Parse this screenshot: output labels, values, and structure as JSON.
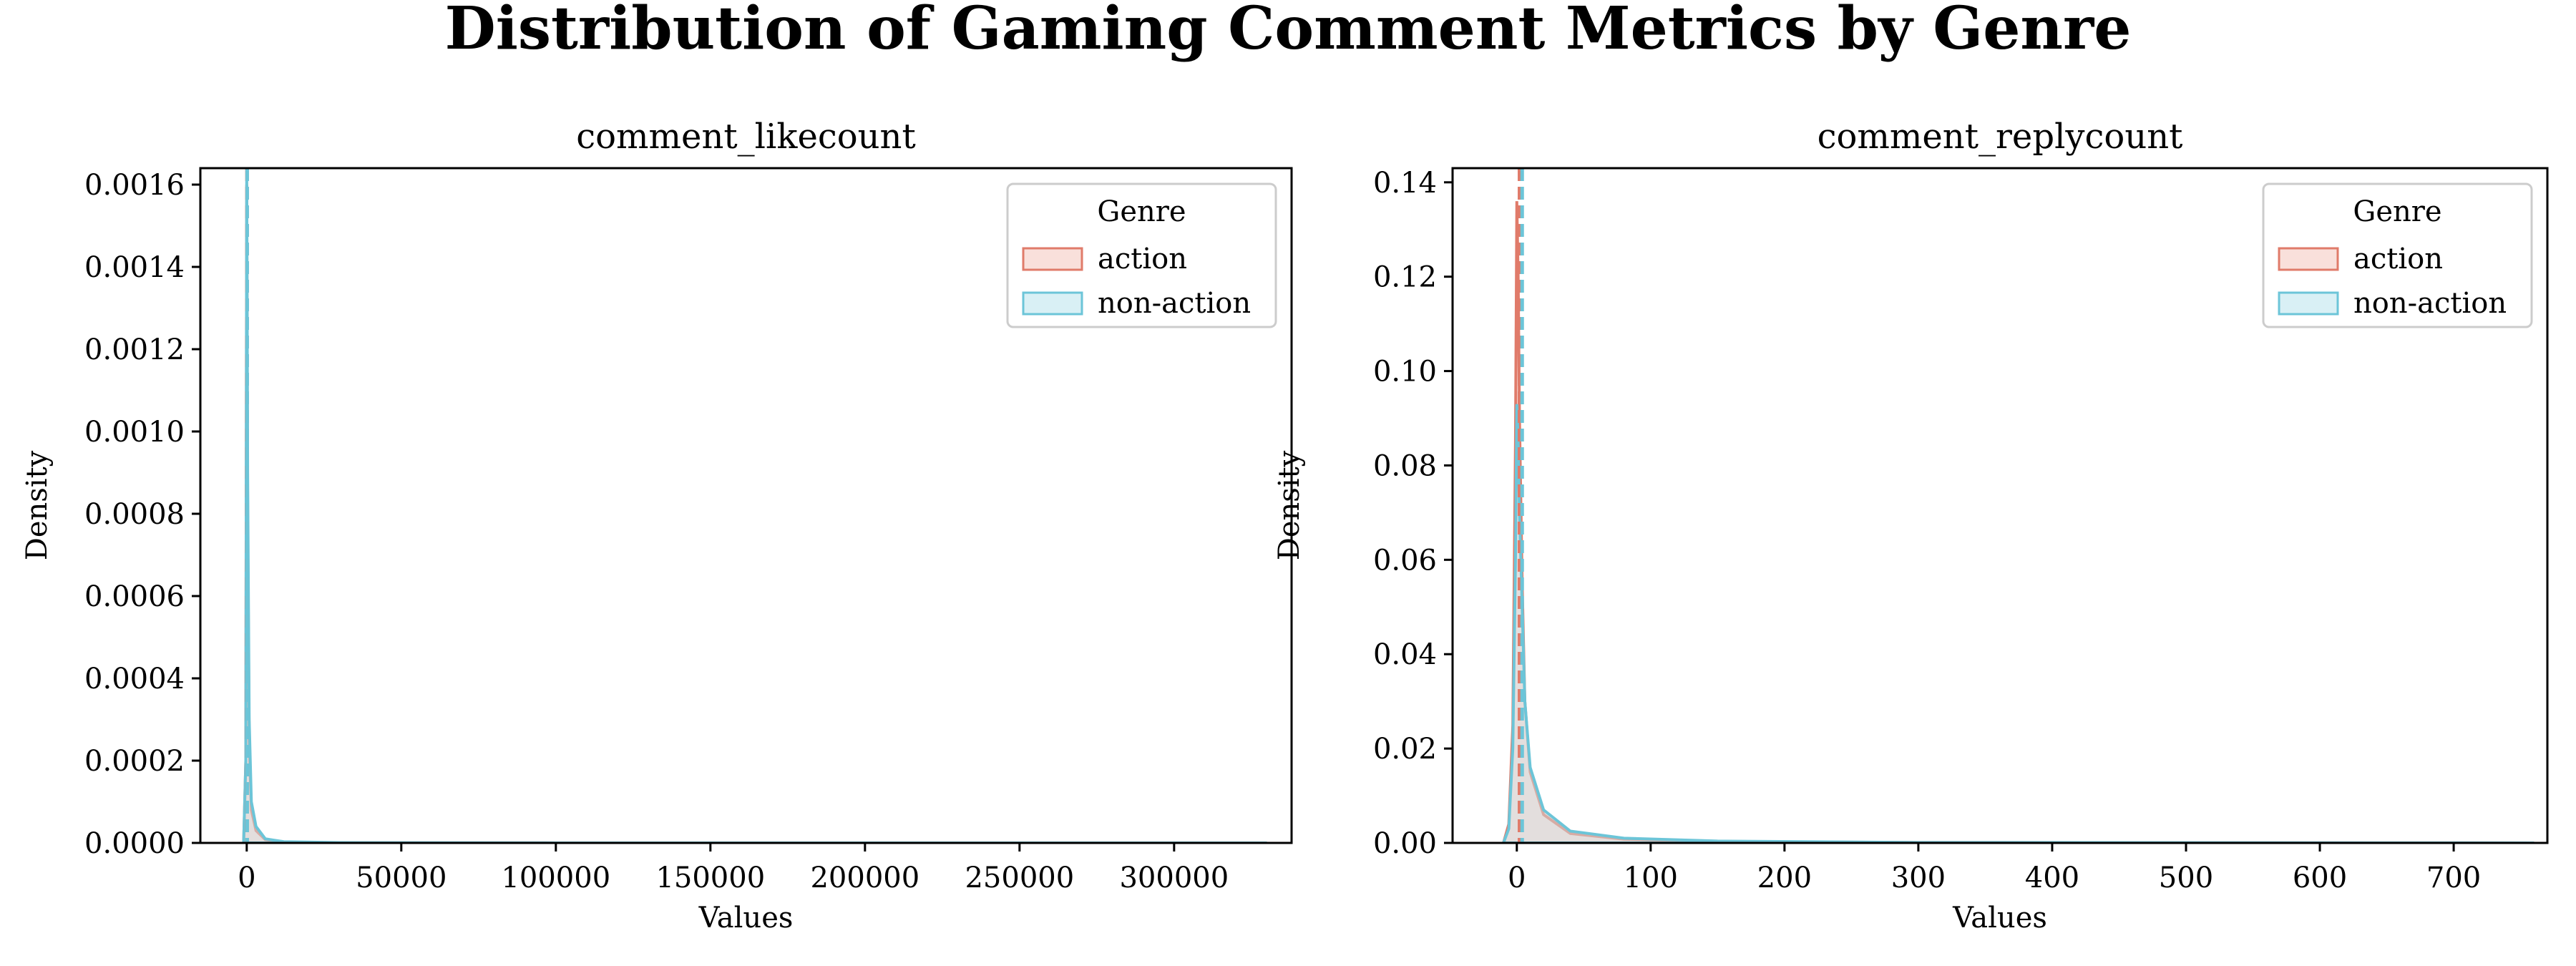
{
  "figure_title": "Distribution of Gaming Comment Metrics by Genre",
  "colors": {
    "action": "#e07b6a",
    "action_fill": "#f9e0db",
    "non_action": "#6cc5d8",
    "non_action_fill": "#d9f0f5",
    "overlap_fill": "#cfd3d3",
    "axis": "#000000"
  },
  "chart_data": [
    {
      "type": "area",
      "title": "comment_likecount",
      "xlabel": "Values",
      "ylabel": "Density",
      "xlim": [
        -15000,
        338000
      ],
      "ylim": [
        0,
        0.00164
      ],
      "xticks": [
        0,
        50000,
        100000,
        150000,
        200000,
        250000,
        300000
      ],
      "xtick_labels": [
        "0",
        "50000",
        "100000",
        "150000",
        "200000",
        "250000",
        "300000"
      ],
      "yticks": [
        0,
        0.0002,
        0.0004,
        0.0006,
        0.0008,
        0.001,
        0.0012,
        0.0014,
        0.0016
      ],
      "ytick_labels": [
        "0.0000",
        "0.0002",
        "0.0004",
        "0.0006",
        "0.0008",
        "0.0010",
        "0.0012",
        "0.0014",
        "0.0016"
      ],
      "legend": {
        "title": "Genre",
        "position": "top-right",
        "entries": [
          "action",
          "non-action"
        ]
      },
      "series": [
        {
          "name": "action",
          "x": [
            -1000,
            -300,
            0,
            300,
            800,
            1500,
            3000,
            6000,
            12000,
            30000,
            100000,
            330000
          ],
          "y": [
            0,
            0.0002,
            0.0016,
            0.0008,
            0.00025,
            8e-05,
            3e-05,
            8e-06,
            2e-06,
            5e-07,
            1e-07,
            0
          ],
          "mean": 100
        },
        {
          "name": "non-action",
          "x": [
            -1000,
            -300,
            0,
            300,
            800,
            1500,
            3000,
            6000,
            12000,
            30000,
            100000,
            330000
          ],
          "y": [
            0,
            0.0002,
            0.00165,
            0.0009,
            0.0003,
            0.0001,
            4e-05,
            1e-05,
            3e-06,
            8e-07,
            1e-07,
            0
          ],
          "mean": 150
        }
      ]
    },
    {
      "type": "area",
      "title": "comment_replycount",
      "xlabel": "Values",
      "ylabel": "Density",
      "xlim": [
        -48,
        770
      ],
      "ylim": [
        0,
        0.143
      ],
      "xticks": [
        0,
        100,
        200,
        300,
        400,
        500,
        600,
        700
      ],
      "xtick_labels": [
        "0",
        "100",
        "200",
        "300",
        "400",
        "500",
        "600",
        "700"
      ],
      "yticks": [
        0,
        0.02,
        0.04,
        0.06,
        0.08,
        0.1,
        0.12,
        0.14
      ],
      "ytick_labels": [
        "0.00",
        "0.02",
        "0.04",
        "0.06",
        "0.08",
        "0.10",
        "0.12",
        "0.14"
      ],
      "legend": {
        "title": "Genre",
        "position": "top-right",
        "entries": [
          "action",
          "non-action"
        ]
      },
      "series": [
        {
          "name": "action",
          "x": [
            -10,
            -6,
            -3,
            -1,
            0,
            1,
            2,
            4,
            6,
            10,
            20,
            40,
            80,
            150,
            300,
            760
          ],
          "y": [
            0,
            0.004,
            0.025,
            0.085,
            0.136,
            0.12,
            0.09,
            0.055,
            0.03,
            0.015,
            0.006,
            0.002,
            0.0008,
            0.0003,
            0.0001,
            0
          ],
          "mean": 2
        },
        {
          "name": "non-action",
          "x": [
            -10,
            -6,
            -3,
            -1,
            0,
            1,
            2,
            4,
            6,
            10,
            20,
            40,
            80,
            150,
            300,
            760
          ],
          "y": [
            0,
            0.003,
            0.02,
            0.06,
            0.093,
            0.085,
            0.07,
            0.05,
            0.03,
            0.016,
            0.007,
            0.0025,
            0.001,
            0.0004,
            0.0001,
            0
          ],
          "mean": 4
        }
      ]
    }
  ]
}
